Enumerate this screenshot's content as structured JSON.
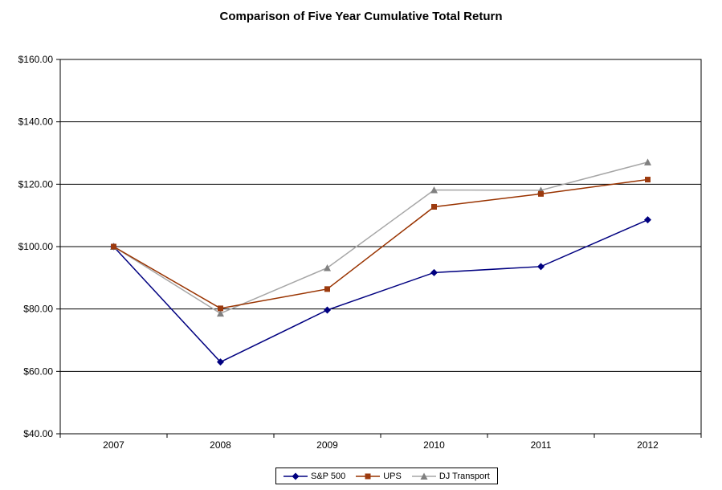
{
  "chart_data": {
    "type": "line",
    "title": "Comparison of Five Year Cumulative Total Return",
    "categories": [
      "2007",
      "2008",
      "2009",
      "2010",
      "2011",
      "2012"
    ],
    "series": [
      {
        "name": "S&P 500",
        "marker": "diamond",
        "line_color": "#000080",
        "marker_color": "#000080",
        "values": [
          100.0,
          63.0,
          79.67,
          91.67,
          93.61,
          108.59
        ]
      },
      {
        "name": "UPS",
        "marker": "square",
        "line_color": "#993300",
        "marker_color": "#9C3A0E",
        "values": [
          100.0,
          80.2,
          86.39,
          112.75,
          116.9,
          121.49
        ]
      },
      {
        "name": "DJ Transport",
        "marker": "triangle",
        "line_color": "#A6A6A6",
        "marker_color": "#808080",
        "values": [
          100.0,
          78.58,
          93.19,
          118.14,
          118.06,
          127.07
        ]
      }
    ],
    "x_axis": {
      "tick_labels": [
        "2007",
        "2008",
        "2009",
        "2010",
        "2011",
        "2012"
      ]
    },
    "y_axis": {
      "min": 40,
      "max": 160,
      "step": 20,
      "tick_labels": [
        "$40.00",
        "$60.00",
        "$80.00",
        "$100.00",
        "$120.00",
        "$140.00",
        "$160.00"
      ]
    },
    "grid": "horizontal",
    "legend_position": "bottom",
    "colors": {
      "gridline": "#000000",
      "plot_border": "#000000",
      "axis_text": "#000000",
      "background": "#ffffff"
    }
  }
}
